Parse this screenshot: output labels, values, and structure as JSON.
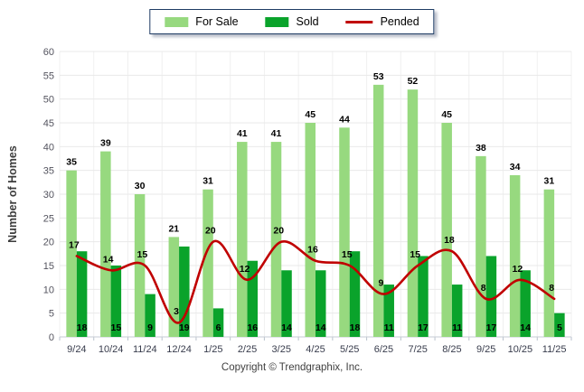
{
  "chart_data": {
    "type": "bar",
    "categories": [
      "9/24",
      "10/24",
      "11/24",
      "12/24",
      "1/25",
      "2/25",
      "3/25",
      "4/25",
      "5/25",
      "6/25",
      "7/25",
      "8/25",
      "9/25",
      "10/25",
      "11/25"
    ],
    "series": [
      {
        "name": "For Sale",
        "type": "bar",
        "color": "#97d97f",
        "values": [
          35,
          39,
          30,
          21,
          31,
          41,
          41,
          45,
          44,
          53,
          52,
          45,
          38,
          34,
          31
        ]
      },
      {
        "name": "Sold",
        "type": "bar",
        "color": "#0aa32b",
        "values": [
          18,
          15,
          9,
          19,
          6,
          16,
          14,
          14,
          18,
          11,
          17,
          11,
          17,
          14,
          5
        ]
      },
      {
        "name": "Pended",
        "type": "line",
        "color": "#c00000",
        "values": [
          17,
          14,
          15,
          3,
          20,
          12,
          20,
          16,
          15,
          9,
          15,
          18,
          8,
          12,
          8
        ]
      }
    ],
    "title": "",
    "xlabel": "",
    "ylabel": "Number of Homes",
    "ylim": [
      0,
      60
    ],
    "ytick_step": 5,
    "grid": true,
    "legend_position": "top-center"
  },
  "footer": {
    "copyright": "Copyright © Trendgraphix, Inc."
  }
}
